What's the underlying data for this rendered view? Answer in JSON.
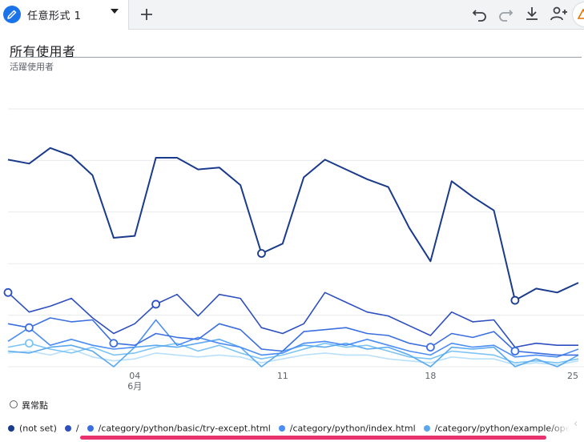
{
  "tab": {
    "label": "任意形式 1",
    "add_icon": "plus-icon"
  },
  "toolbar": {
    "icons": [
      "undo-icon",
      "redo-icon",
      "download-icon",
      "share-icon",
      "warning-icon"
    ]
  },
  "card": {
    "title": "所有使用者",
    "subtitle": "活躍使用者"
  },
  "chart_data": {
    "type": "line",
    "x_tick_labels": [
      {
        "day": "04",
        "month": "6月"
      },
      {
        "day": "11"
      },
      {
        "day": "18"
      },
      {
        "day": "25"
      }
    ],
    "series": [
      {
        "name": "(not set)",
        "color": "#1a3a8c",
        "values": [
          5.3,
          5.2,
          5.6,
          5.4,
          4.9,
          3.3,
          3.35,
          5.35,
          5.35,
          5.05,
          5.1,
          4.65,
          2.9,
          3.15,
          4.85,
          5.3,
          5.05,
          4.8,
          4.6,
          3.55,
          2.7,
          4.75,
          4.35,
          4.0,
          1.7,
          2.0,
          1.9,
          2.15
        ]
      },
      {
        "name": "/",
        "color": "#2e4fbf",
        "values": [
          1.9,
          1.4,
          1.55,
          1.75,
          1.25,
          0.85,
          1.1,
          1.6,
          1.85,
          1.3,
          1.85,
          1.75,
          1.0,
          0.85,
          1.1,
          1.9,
          1.65,
          1.4,
          1.3,
          1.05,
          0.8,
          1.4,
          1.15,
          1.2,
          0.5,
          0.6,
          0.55,
          0.55
        ]
      },
      {
        "name": "/category/python/basic/try-except.html",
        "color": "#3b6fe0",
        "values": [
          1.1,
          1.0,
          1.25,
          1.15,
          1.2,
          0.6,
          0.55,
          0.85,
          0.75,
          0.7,
          1.1,
          0.95,
          0.45,
          0.4,
          0.9,
          0.95,
          1.0,
          0.85,
          0.8,
          0.6,
          0.5,
          0.85,
          0.75,
          0.9,
          0.4,
          0.35,
          0.3,
          0.3
        ]
      },
      {
        "name": "/category/python/index.html",
        "color": "#4c8df5",
        "values": [
          0.65,
          1.0,
          0.55,
          0.7,
          0.55,
          0.45,
          0.5,
          1.2,
          0.55,
          0.75,
          0.6,
          0.5,
          0.3,
          0.35,
          0.6,
          0.65,
          0.55,
          0.7,
          0.55,
          0.4,
          0.3,
          0.6,
          0.5,
          0.55,
          0.25,
          0.3,
          0.25,
          0.45
        ]
      },
      {
        "name": "/category/python/example/openai.html",
        "color": "#5aa9ee",
        "values": [
          0.4,
          0.35,
          0.5,
          0.55,
          0.4,
          0.0,
          0.5,
          0.55,
          0.5,
          0.6,
          0.7,
          0.5,
          0.0,
          0.4,
          0.55,
          0.5,
          0.6,
          0.45,
          0.5,
          0.3,
          0.0,
          0.5,
          0.45,
          0.5,
          0.0,
          0.2,
          0.0,
          0.3
        ]
      },
      {
        "name": "",
        "color": "#7cc4f4",
        "values": [
          0.5,
          0.6,
          0.45,
          0.35,
          0.5,
          0.3,
          0.35,
          0.5,
          0.6,
          0.4,
          0.55,
          0.35,
          0.2,
          0.3,
          0.45,
          0.6,
          0.5,
          0.55,
          0.4,
          0.25,
          0.2,
          0.4,
          0.35,
          0.3,
          0.1,
          0.15,
          0.1,
          0.2
        ]
      },
      {
        "name": "",
        "color": "#b9e0fb",
        "values": [
          0.35,
          0.4,
          0.3,
          0.45,
          0.25,
          0.15,
          0.2,
          0.35,
          0.3,
          0.25,
          0.3,
          0.25,
          0.1,
          0.2,
          0.3,
          0.35,
          0.3,
          0.3,
          0.2,
          0.15,
          0.1,
          0.25,
          0.2,
          0.2,
          0.05,
          0.1,
          0.05,
          0.15
        ]
      }
    ],
    "anomalies": [
      {
        "series": 0,
        "index": 12
      },
      {
        "series": 0,
        "index": 24
      },
      {
        "series": 1,
        "index": 0
      },
      {
        "series": 1,
        "index": 7
      },
      {
        "series": 2,
        "index": 1
      },
      {
        "series": 2,
        "index": 5
      },
      {
        "series": 2,
        "index": 20
      },
      {
        "series": 2,
        "index": 24
      },
      {
        "series": 5,
        "index": 1
      }
    ],
    "x_tick_index": [
      6,
      13,
      20,
      27
    ],
    "ylim": [
      0,
      6.6
    ],
    "grid": true,
    "legend_position": "bottom"
  },
  "anomaly_legend": {
    "label": "異常點"
  },
  "legend": {
    "items": [
      {
        "label": "(not set)",
        "color": "#1a3a8c"
      },
      {
        "label": "/",
        "color": "#2e4fbf"
      },
      {
        "label": "/category/python/basic/try-except.html",
        "color": "#3b6fe0"
      },
      {
        "label": "/category/python/index.html",
        "color": "#4c8df5"
      },
      {
        "label": "/category/python/example/openai.html",
        "color": "#5aa9ee"
      },
      {
        "label": "",
        "color": "#b9e0fb"
      }
    ]
  }
}
